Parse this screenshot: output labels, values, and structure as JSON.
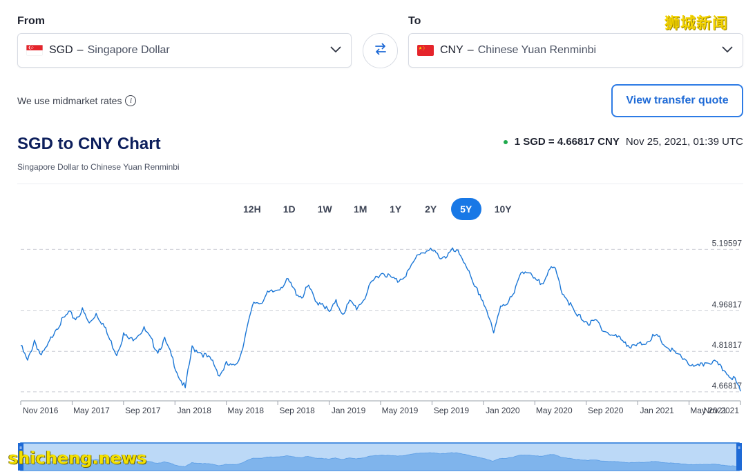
{
  "from": {
    "label": "From",
    "code": "SGD",
    "sep": "–",
    "name": "Singapore Dollar"
  },
  "to": {
    "label": "To",
    "code": "CNY",
    "sep": "–",
    "name": "Chinese Yuan Renminbi"
  },
  "note": {
    "text": "We use midmarket rates"
  },
  "quote_button": "View transfer quote",
  "chart_header": {
    "title": "SGD to CNY Chart",
    "subtitle": "Singapore Dollar to Chinese Yuan Renminbi",
    "rate": "1 SGD = 4.66817 CNY",
    "timestamp": "Nov 25, 2021, 01:39 UTC"
  },
  "periods": [
    "12H",
    "1D",
    "1W",
    "1M",
    "1Y",
    "2Y",
    "5Y",
    "10Y"
  ],
  "active_period": "5Y",
  "watermarks": {
    "cn": "狮城新闻",
    "en": "shicheng.news"
  },
  "colors": {
    "accent": "#1878e6",
    "line": "#1a76d6",
    "title": "#0d1f5c",
    "status": "#1faa4d"
  },
  "chart_data": {
    "type": "line",
    "x_ticks": [
      "Nov 2016",
      "May 2017",
      "Sep 2017",
      "Jan 2018",
      "May 2018",
      "Sep 2018",
      "Jan 2019",
      "May 2019",
      "Sep 2019",
      "Jan 2020",
      "May 2020",
      "Sep 2020",
      "Jan 2021",
      "May 2021",
      "Nov 2021"
    ],
    "y_ticks": [
      5.19597,
      4.96817,
      4.81817,
      4.66817
    ],
    "ylim": [
      4.645,
      5.22
    ],
    "grid": "horizontal-dashed",
    "series": [
      {
        "values": [
          4.84,
          4.78,
          4.86,
          4.8,
          4.84,
          4.9,
          4.93,
          4.96,
          4.94,
          4.97,
          4.92,
          4.96,
          4.92,
          4.86,
          4.81,
          4.88,
          4.86,
          4.88,
          4.9,
          4.86,
          4.82,
          4.86,
          4.8,
          4.73,
          4.68,
          4.83,
          4.82,
          4.8,
          4.78,
          4.73,
          4.77,
          4.76,
          4.8,
          4.9,
          5.0,
          5.0,
          5.03,
          5.04,
          5.06,
          5.08,
          5.04,
          5.02,
          5.06,
          5.0,
          5.0,
          4.96,
          5.0,
          4.96,
          5.0,
          4.98,
          5.01,
          5.06,
          5.1,
          5.11,
          5.09,
          5.08,
          5.1,
          5.13,
          5.18,
          5.19,
          5.19,
          5.17,
          5.17,
          5.19,
          5.18,
          5.14,
          5.06,
          5.03,
          4.97,
          4.88,
          4.99,
          5.0,
          5.03,
          5.12,
          5.11,
          5.08,
          5.07,
          5.12,
          5.12,
          5.04,
          5.0,
          4.95,
          4.94,
          4.92,
          4.93,
          4.9,
          4.88,
          4.87,
          4.86,
          4.83,
          4.84,
          4.85,
          4.87,
          4.87,
          4.84,
          4.82,
          4.8,
          4.79,
          4.76,
          4.76,
          4.78,
          4.78,
          4.76,
          4.74,
          4.72,
          4.67
        ]
      }
    ],
    "overview_window": [
      0,
      1
    ]
  }
}
